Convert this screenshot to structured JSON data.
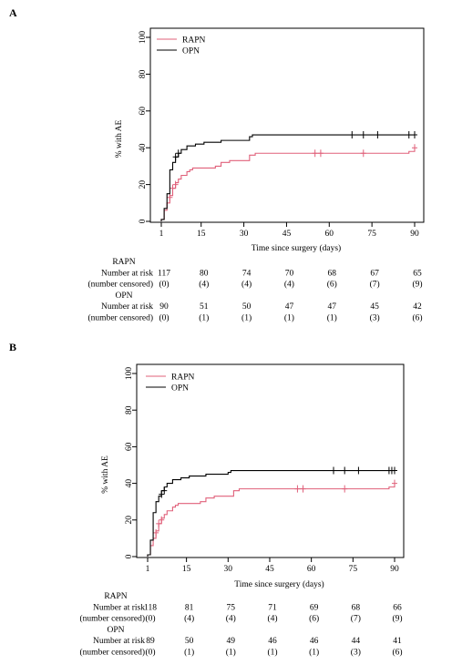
{
  "panels": [
    {
      "letter": "A",
      "chart_data": {
        "type": "line",
        "title": "",
        "xlabel": "Time since surgery (days)",
        "ylabel": "% with AE",
        "xlim": [
          1,
          90
        ],
        "ylim": [
          0,
          100
        ],
        "xticks": [
          1,
          15,
          30,
          45,
          60,
          75,
          90
        ],
        "yticks": [
          0,
          20,
          40,
          60,
          80,
          100
        ],
        "legend_position": "top-left",
        "series": [
          {
            "name": "RAPN",
            "color": "#e0607a",
            "steps": [
              [
                0,
                0
              ],
              [
                1,
                1
              ],
              [
                2,
                6
              ],
              [
                3,
                10
              ],
              [
                4,
                14
              ],
              [
                5,
                18
              ],
              [
                6,
                21
              ],
              [
                7,
                23
              ],
              [
                8,
                25
              ],
              [
                10,
                27
              ],
              [
                11,
                28
              ],
              [
                12,
                29
              ],
              [
                20,
                30
              ],
              [
                22,
                32
              ],
              [
                25,
                33
              ],
              [
                32,
                36
              ],
              [
                34,
                37
              ],
              [
                88,
                38
              ],
              [
                90,
                40
              ]
            ],
            "censored": [
              [
                4,
                13
              ],
              [
                5,
                18
              ],
              [
                6,
                20
              ],
              [
                55,
                37
              ],
              [
                57,
                37
              ],
              [
                72,
                37
              ],
              [
                90,
                40
              ]
            ]
          },
          {
            "name": "OPN",
            "color": "#000000",
            "steps": [
              [
                0,
                0
              ],
              [
                1,
                1
              ],
              [
                2,
                7
              ],
              [
                3,
                15
              ],
              [
                4,
                28
              ],
              [
                5,
                32
              ],
              [
                6,
                35
              ],
              [
                7,
                37
              ],
              [
                8,
                39
              ],
              [
                10,
                41
              ],
              [
                13,
                42
              ],
              [
                16,
                43
              ],
              [
                22,
                44
              ],
              [
                32,
                46
              ],
              [
                33,
                47
              ],
              [
                90,
                47
              ]
            ],
            "censored": [
              [
                6,
                35
              ],
              [
                7,
                37
              ],
              [
                68,
                47
              ],
              [
                72,
                47
              ],
              [
                77,
                47
              ],
              [
                88,
                47
              ],
              [
                90,
                47
              ]
            ]
          }
        ]
      },
      "risk_table": {
        "times": [
          "1",
          "15",
          "30",
          "45",
          "60",
          "75",
          "90"
        ],
        "groups": [
          {
            "name": "RAPN",
            "at_risk_label": "Number at risk",
            "censored_label": "(number censored)",
            "at_risk": [
              "117",
              "80",
              "74",
              "70",
              "68",
              "67",
              "65"
            ],
            "censored": [
              "(0)",
              "(4)",
              "(4)",
              "(4)",
              "(6)",
              "(7)",
              "(9)"
            ]
          },
          {
            "name": "OPN",
            "at_risk_label": "Number at risk",
            "censored_label": "(number censored)",
            "at_risk": [
              "90",
              "51",
              "50",
              "47",
              "47",
              "45",
              "42"
            ],
            "censored": [
              "(0)",
              "(1)",
              "(1)",
              "(1)",
              "(1)",
              "(3)",
              "(6)"
            ]
          }
        ]
      }
    },
    {
      "letter": "B",
      "chart_data": {
        "type": "line",
        "title": "",
        "xlabel": "Time since surgery (days)",
        "ylabel": "% with AE",
        "xlim": [
          1,
          90
        ],
        "ylim": [
          0,
          100
        ],
        "xticks": [
          1,
          15,
          30,
          45,
          60,
          75,
          90
        ],
        "yticks": [
          0,
          20,
          40,
          60,
          80,
          100
        ],
        "legend_position": "top-left",
        "series": [
          {
            "name": "RAPN",
            "color": "#e0607a",
            "steps": [
              [
                0,
                0
              ],
              [
                1,
                1
              ],
              [
                2,
                6
              ],
              [
                3,
                10
              ],
              [
                4,
                14
              ],
              [
                5,
                18
              ],
              [
                6,
                21
              ],
              [
                7,
                23
              ],
              [
                8,
                25
              ],
              [
                10,
                27
              ],
              [
                11,
                28
              ],
              [
                12,
                29
              ],
              [
                20,
                30
              ],
              [
                22,
                32
              ],
              [
                25,
                33
              ],
              [
                32,
                36
              ],
              [
                34,
                37
              ],
              [
                88,
                38
              ],
              [
                90,
                40
              ]
            ],
            "censored": [
              [
                4,
                13
              ],
              [
                5,
                18
              ],
              [
                6,
                20
              ],
              [
                55,
                37
              ],
              [
                57,
                37
              ],
              [
                72,
                37
              ],
              [
                90,
                40
              ]
            ]
          },
          {
            "name": "OPN",
            "color": "#000000",
            "steps": [
              [
                0,
                0
              ],
              [
                1,
                1
              ],
              [
                2,
                9
              ],
              [
                3,
                24
              ],
              [
                4,
                30
              ],
              [
                5,
                33
              ],
              [
                6,
                36
              ],
              [
                7,
                38
              ],
              [
                8,
                40
              ],
              [
                10,
                42
              ],
              [
                13,
                43
              ],
              [
                16,
                44
              ],
              [
                22,
                45
              ],
              [
                30,
                46
              ],
              [
                31,
                47
              ],
              [
                90,
                47
              ]
            ],
            "censored": [
              [
                6,
                34
              ],
              [
                7,
                36
              ],
              [
                68,
                47
              ],
              [
                72,
                47
              ],
              [
                77,
                47
              ],
              [
                88,
                47
              ],
              [
                89,
                47
              ],
              [
                90,
                47
              ]
            ]
          }
        ]
      },
      "risk_table": {
        "times": [
          "1",
          "15",
          "30",
          "45",
          "60",
          "75",
          "90"
        ],
        "groups": [
          {
            "name": "RAPN",
            "at_risk_label": "Number at risk",
            "censored_label": "(number censored)",
            "at_risk": [
              "118",
              "81",
              "75",
              "71",
              "69",
              "68",
              "66"
            ],
            "censored": [
              "(0)",
              "(4)",
              "(4)",
              "(4)",
              "(6)",
              "(7)",
              "(9)"
            ]
          },
          {
            "name": "OPN",
            "at_risk_label": "Number at risk",
            "censored_label": "(number censored)",
            "at_risk": [
              "89",
              "50",
              "49",
              "46",
              "46",
              "44",
              "41"
            ],
            "censored": [
              "(0)",
              "(1)",
              "(1)",
              "(1)",
              "(1)",
              "(3)",
              "(6)"
            ]
          }
        ]
      }
    }
  ]
}
